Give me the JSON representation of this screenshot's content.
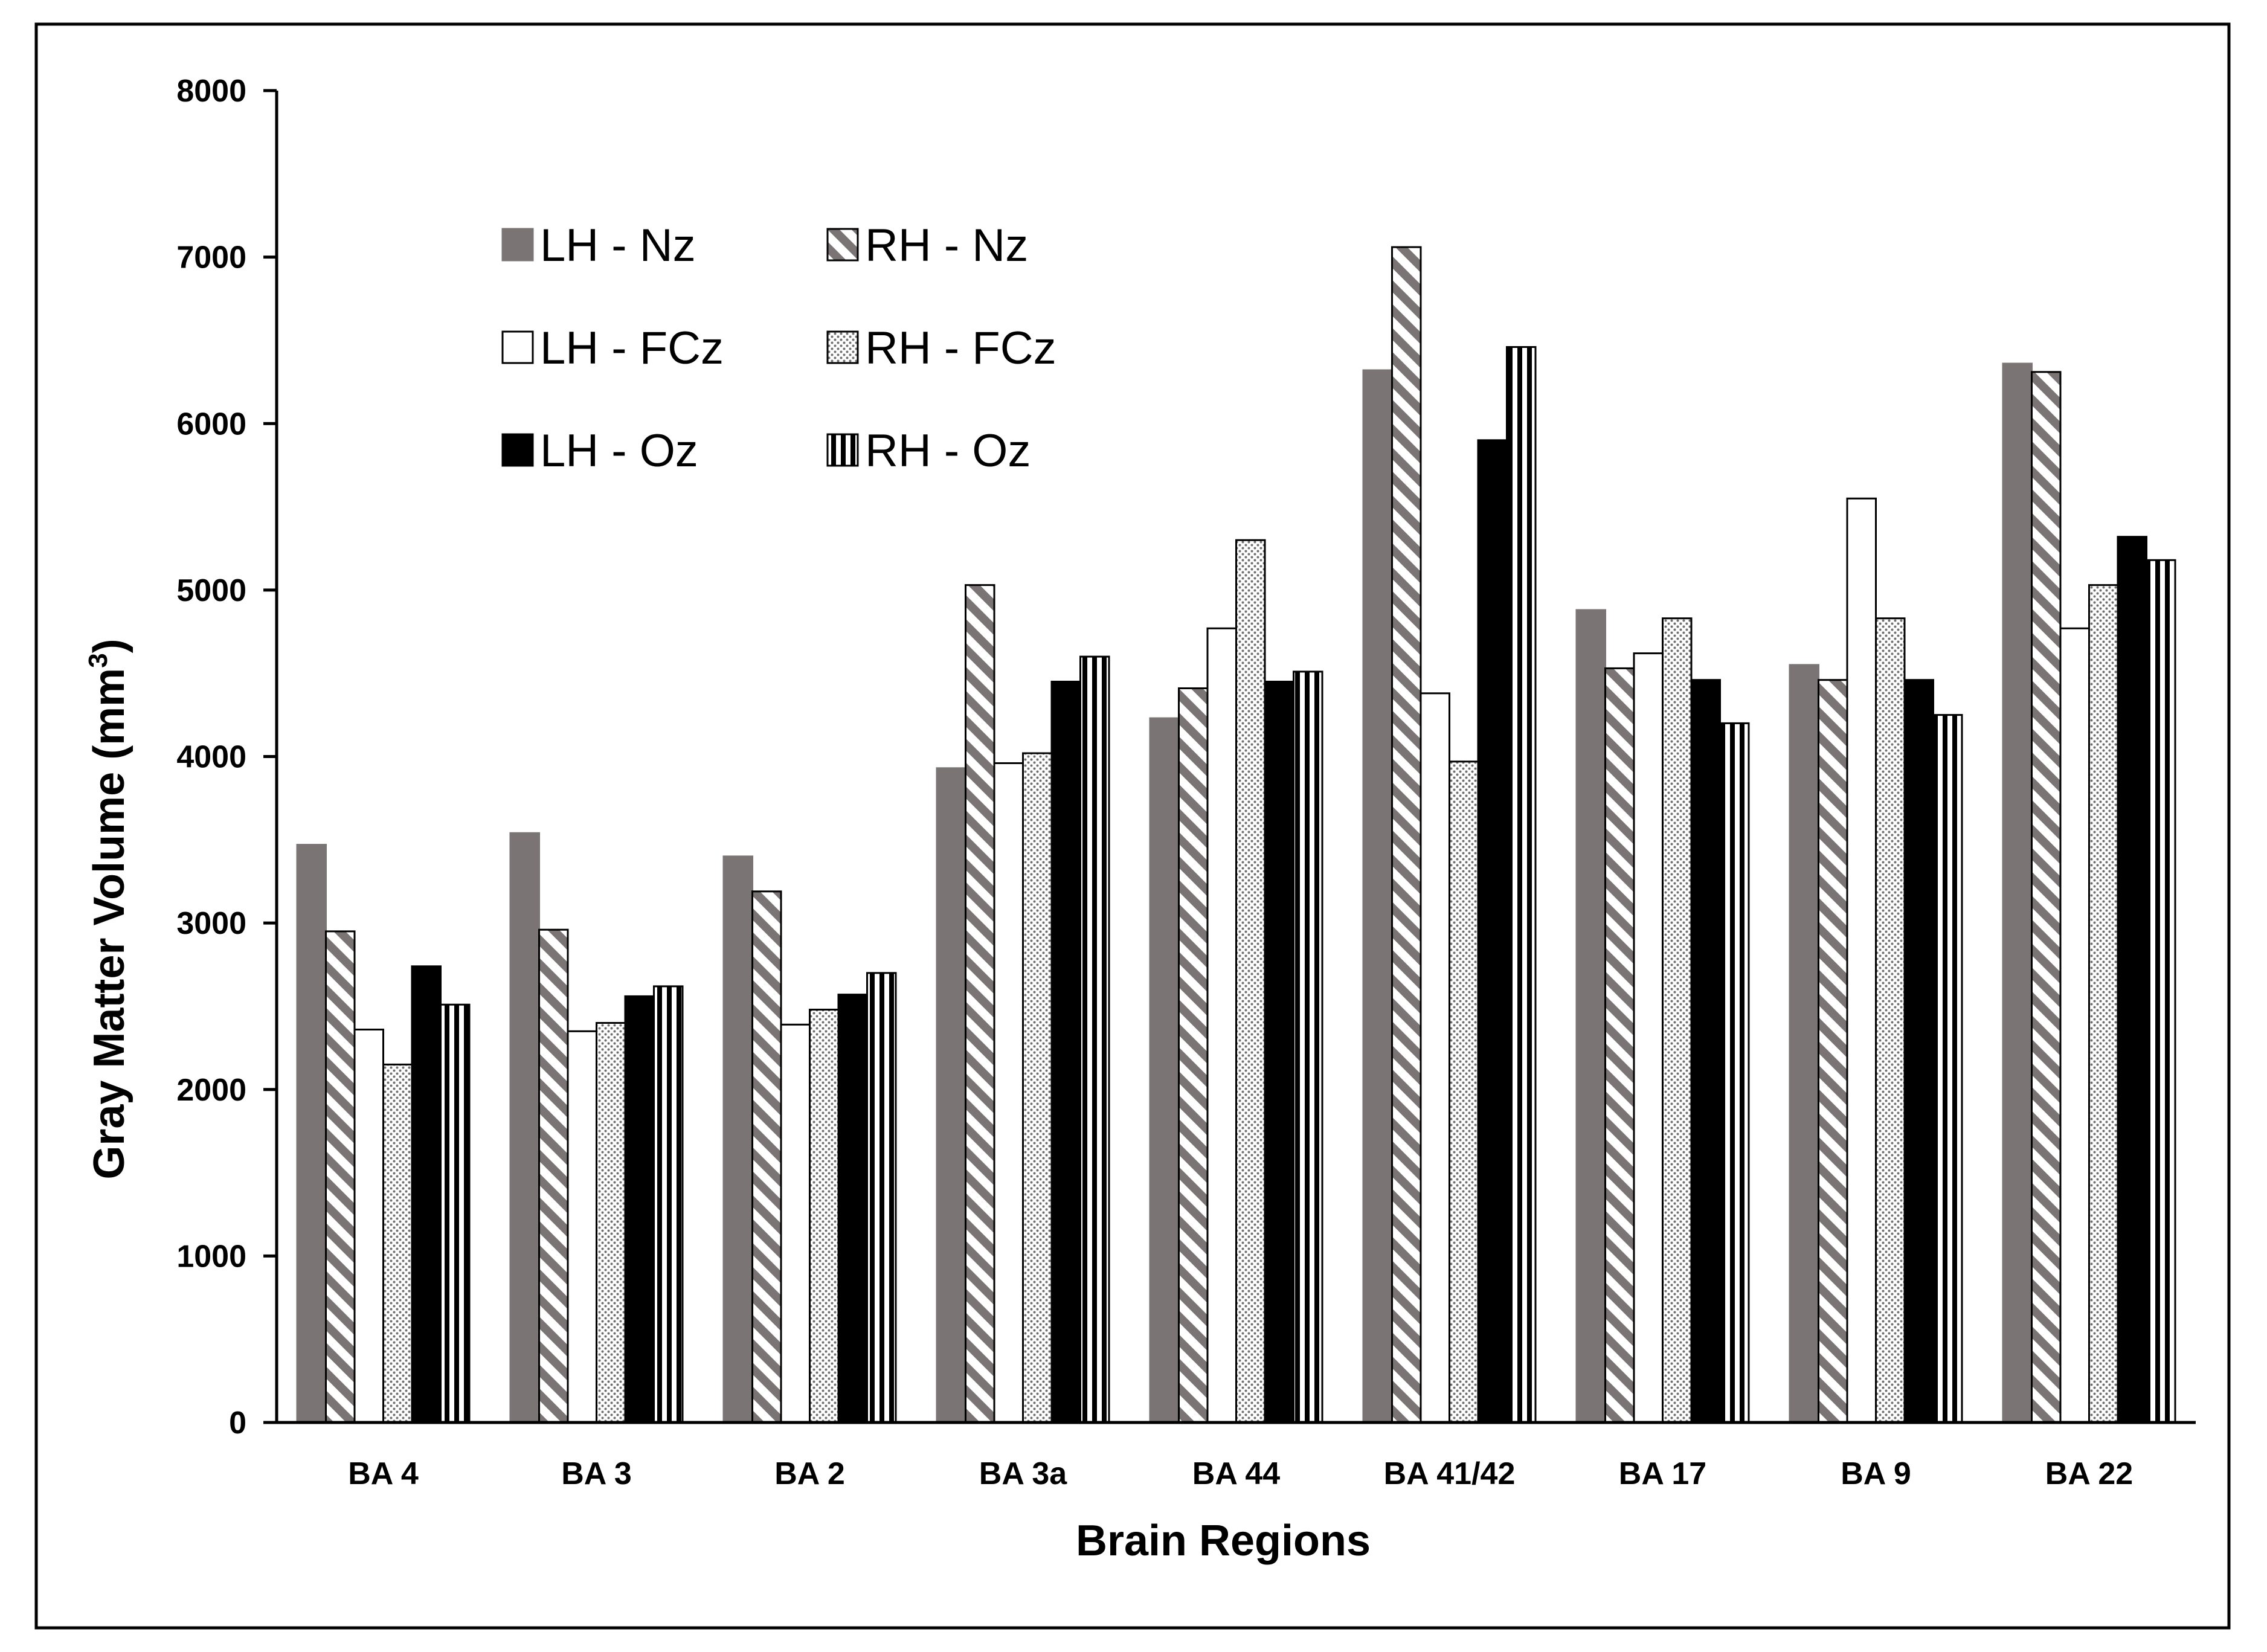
{
  "chart_data": {
    "type": "bar",
    "title": "",
    "xlabel": "Brain Regions",
    "ylabel": "Gray Matter Volume (mm",
    "ylabel_sup": "3",
    "ylabel_end": ")",
    "ylim": [
      0,
      8000
    ],
    "yticks": [
      "0",
      "1000",
      "2000",
      "3000",
      "4000",
      "5000",
      "6000",
      "7000",
      "8000"
    ],
    "grid": false,
    "legend_position": "top-left",
    "categories": [
      "BA 4",
      "BA 3",
      "BA 2",
      "BA 3a",
      "BA 44",
      "BA 41/42",
      "BA 17",
      "BA 9",
      "BA 22"
    ],
    "series": [
      {
        "name": "LH - Nz",
        "style": "solid-gray",
        "color": "#7b7474",
        "values": [
          3470,
          3540,
          3400,
          3930,
          4230,
          6320,
          4880,
          4550,
          6360
        ]
      },
      {
        "name": "RH - Nz",
        "style": "diagonal",
        "color": "#7b7474",
        "values": [
          2950,
          2960,
          3190,
          5030,
          4410,
          7060,
          4530,
          4460,
          6310
        ]
      },
      {
        "name": "LH - FCz",
        "style": "white",
        "color": "#ffffff",
        "values": [
          2360,
          2350,
          2390,
          3960,
          4770,
          4380,
          4620,
          5550,
          4770
        ]
      },
      {
        "name": "RH - FCz",
        "style": "dotted",
        "color": "#d9d9d9",
        "values": [
          2150,
          2400,
          2480,
          4020,
          5300,
          3970,
          4830,
          4830,
          5030
        ]
      },
      {
        "name": "LH - Oz",
        "style": "solid-black",
        "color": "#000000",
        "values": [
          2740,
          2560,
          2570,
          4450,
          4450,
          5900,
          4460,
          4460,
          5320
        ]
      },
      {
        "name": "RH - Oz",
        "style": "vertical",
        "color": "#000000",
        "values": [
          2510,
          2620,
          2700,
          4600,
          4510,
          6460,
          4200,
          4250,
          5180
        ]
      }
    ]
  }
}
